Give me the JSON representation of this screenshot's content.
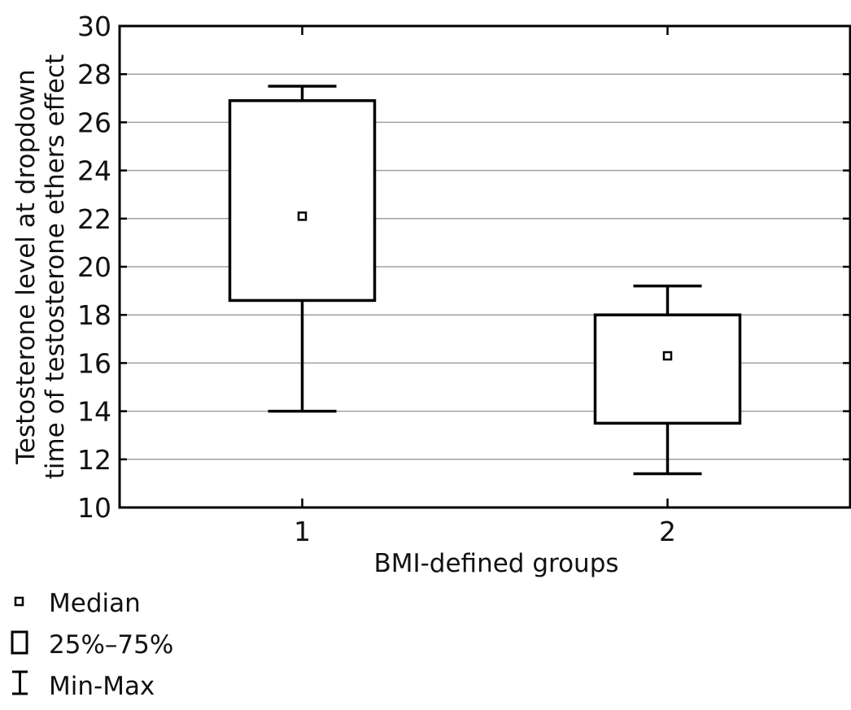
{
  "chart_data": {
    "type": "box",
    "xlabel": "BMI-defined groups",
    "ylabel": [
      "Testosterone level at dropdown",
      "time of testosterone ethers effect"
    ],
    "ylim": [
      10,
      30
    ],
    "yticks": [
      10,
      12,
      14,
      16,
      18,
      20,
      22,
      24,
      26,
      28,
      30
    ],
    "grid": true,
    "categories": [
      "1",
      "2"
    ],
    "boxes": [
      {
        "category": "1",
        "min": 14.0,
        "q1": 18.6,
        "median": 22.1,
        "q3": 26.9,
        "max": 27.5
      },
      {
        "category": "2",
        "min": 11.4,
        "q1": 13.5,
        "median": 16.3,
        "q3": 18.0,
        "max": 19.2
      }
    ],
    "legend": {
      "position": "bottom-left",
      "entries": [
        {
          "symbol": "median",
          "label": "Median"
        },
        {
          "symbol": "box",
          "label": "25%–75%"
        },
        {
          "symbol": "whisker",
          "label": "Min-Max"
        }
      ]
    }
  }
}
